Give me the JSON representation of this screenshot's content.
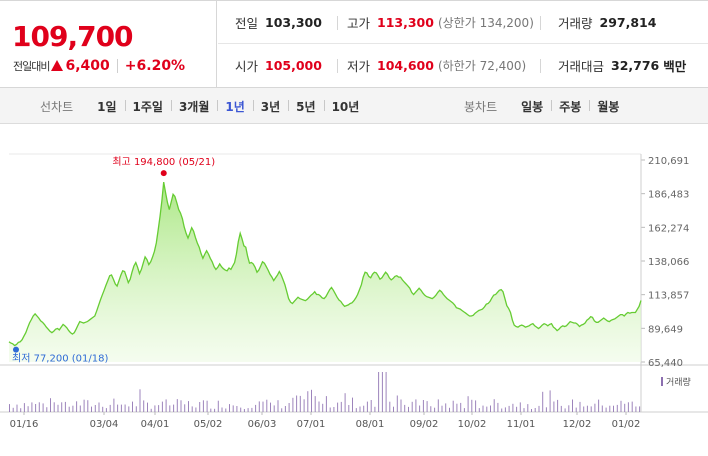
{
  "quote": {
    "price": "109,700",
    "change_label": "전일대비",
    "change_amount": "6,400",
    "change_percent": "+6.20%",
    "prev_close_label": "전일",
    "prev_close": "103,300",
    "high_label": "고가",
    "high": "113,300",
    "upper_limit": "(상한가 134,200)",
    "volume_label": "거래량",
    "volume": "297,814",
    "open_label": "시가",
    "open": "105,000",
    "low_label": "저가",
    "low": "104,600",
    "lower_limit": "(하한가 72,400)",
    "trade_value_label": "거래대금",
    "trade_value": "32,776",
    "trade_value_unit": "백만",
    "accent_up": "#e0001b"
  },
  "tabs": {
    "line_chart_label": "선차트",
    "line_periods": [
      "1일",
      "1주일",
      "3개월",
      "1년",
      "3년",
      "5년",
      "10년"
    ],
    "active_period": "1년",
    "candle_chart_label": "봉차트",
    "candle_periods": [
      "일봉",
      "주봉",
      "월봉"
    ]
  },
  "chart_data": {
    "type": "area",
    "y_ticks": [
      "210,691",
      "186,483",
      "162,274",
      "138,066",
      "113,857",
      "89,649",
      "65,440"
    ],
    "ylim": [
      65440,
      210691
    ],
    "x_ticks": [
      "01/16",
      "03/04",
      "04/01",
      "05/02",
      "06/03",
      "07/01",
      "08/01",
      "09/02",
      "10/02",
      "11/01",
      "12/02",
      "01/02"
    ],
    "max_label": "최고 194,800 (05/21)",
    "min_label": "최저 77,200 (01/18)",
    "volume_legend": "거래량",
    "line_color": "#66cc33",
    "fill_color": "#c8f0a8",
    "volume_color": "#8c6fb0",
    "series": [
      {
        "name": "price",
        "values": [
          80000,
          79000,
          78500,
          77200,
          78000,
          79500,
          80000,
          81500,
          84000,
          86500,
          90000,
          93500,
          96000,
          98500,
          100000,
          98500,
          97000,
          95000,
          94000,
          92500,
          90500,
          89000,
          87500,
          86500,
          87500,
          89000,
          89500,
          88500,
          90500,
          92500,
          91500,
          90000,
          88000,
          86500,
          85500,
          86500,
          89000,
          92000,
          94500,
          94000,
          93500,
          94000,
          94500,
          95500,
          96500,
          97500,
          98500,
          102000,
          106000,
          110000,
          113500,
          117000,
          120500,
          124000,
          127500,
          128000,
          125000,
          121500,
          120000,
          124000,
          128000,
          131000,
          130500,
          126500,
          122500,
          125000,
          130000,
          134500,
          137000,
          133500,
          129000,
          132000,
          136500,
          141000,
          139000,
          135500,
          137500,
          141000,
          145000,
          151000,
          160000,
          170000,
          181500,
          194800,
          187000,
          180000,
          175000,
          180500,
          186000,
          184500,
          180000,
          175000,
          172500,
          168500,
          162500,
          158000,
          154500,
          158000,
          162000,
          159500,
          155000,
          151000,
          148000,
          143500,
          140000,
          143000,
          145500,
          143000,
          140000,
          137500,
          134000,
          132000,
          133500,
          136000,
          134000,
          132500,
          131500,
          131000,
          133000,
          132000,
          134500,
          137000,
          143000,
          152000,
          158000,
          154000,
          149000,
          148000,
          141500,
          136500,
          137000,
          136000,
          133500,
          130000,
          131500,
          134500,
          137500,
          136500,
          134000,
          131500,
          128500,
          126500,
          124000,
          126000,
          128000,
          130500,
          128000,
          124500,
          121000,
          116000,
          111000,
          108500,
          107500,
          109000,
          110500,
          112000,
          111000,
          110500,
          110000,
          109500,
          110500,
          112000,
          113500,
          114500,
          116000,
          114000,
          114000,
          113000,
          111500,
          111000,
          112500,
          115000,
          117500,
          119000,
          117000,
          114500,
          112000,
          110000,
          109000,
          107000,
          105500,
          106000,
          106500,
          107500,
          108000,
          109500,
          111500,
          114000,
          117500,
          121000,
          126500,
          130000,
          129500,
          127000,
          126000,
          128500,
          130000,
          129500,
          127500,
          125000,
          126000,
          128000,
          130000,
          128500,
          126000,
          124500,
          125500,
          127000,
          127500,
          126500,
          126500,
          124500,
          123000,
          121500,
          120000,
          118500,
          115500,
          114000,
          115500,
          117000,
          118500,
          117000,
          115000,
          113500,
          112500,
          112000,
          111500,
          111000,
          112000,
          113500,
          115500,
          117000,
          116000,
          114000,
          112500,
          111000,
          110000,
          109000,
          108000,
          106500,
          104500,
          104000,
          103500,
          102500,
          101500,
          100500,
          99500,
          98500,
          98500,
          99000,
          100500,
          101500,
          102500,
          103000,
          103500,
          105000,
          107000,
          107500,
          109000,
          111500,
          113500,
          114000,
          115500,
          117000,
          117500,
          116000,
          111000,
          106000,
          104000,
          101000,
          95500,
          92000,
          91000,
          90500,
          91500,
          92000,
          91500,
          90500,
          91000,
          91500,
          92500,
          93000,
          91500,
          90500,
          89500,
          90500,
          92000,
          93000,
          92500,
          91500,
          92500,
          93000,
          90500,
          89500,
          88000,
          89000,
          90500,
          91500,
          91000,
          91500,
          93000,
          94500,
          94000,
          93500,
          93500,
          92500,
          91000,
          92000,
          92500,
          93500,
          95500,
          96500,
          98000,
          97500,
          95000,
          94000,
          94000,
          95000,
          96000,
          97000,
          96000,
          95000,
          94500,
          95500,
          96000,
          96500,
          97500,
          98500,
          99500,
          99500,
          98500,
          100000,
          101000,
          100500,
          101000,
          101000,
          101000,
          103300,
          105500,
          109700
        ]
      }
    ]
  }
}
